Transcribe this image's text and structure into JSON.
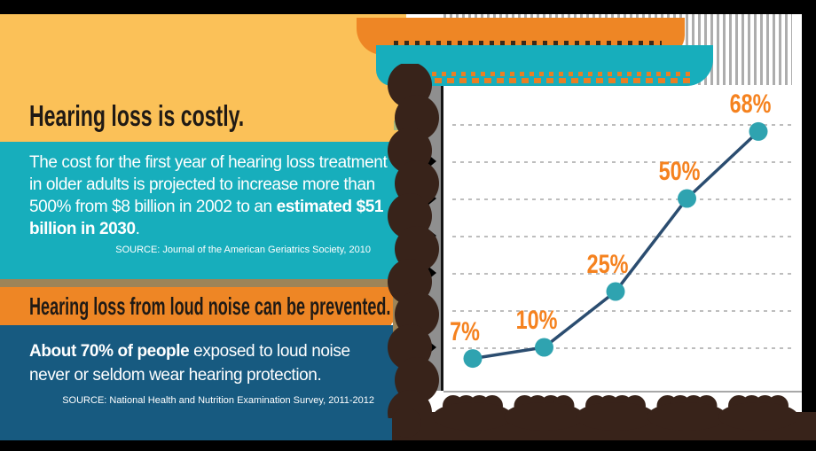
{
  "colors": {
    "yellow": "#FBC158",
    "teal": "#17AEBC",
    "orange": "#EE8625",
    "dark_blue": "#175A80",
    "tan": "#9D8458",
    "brown": "#38231A",
    "frame_black": "#000000",
    "label_orange": "#F5821F",
    "line_navy": "#2B4D70",
    "dot_teal": "#2FA3B0",
    "grid_gray": "#BDBDBD",
    "stripe_gray": "#ADADAD",
    "axis_bar_gray": "#8F8F8F",
    "sage": "#A8BA7F"
  },
  "costly_section": {
    "heading": "Hearing loss is costly.",
    "body_pre": "The cost for the first year of hearing loss treatment in older adults is projected to increase more than 500% from $8 billion in 2002 to an ",
    "body_bold": "estimated $51 billion in 2030",
    "body_end": ".",
    "source": "SOURCE:  Journal of the American Geriatrics Society, 2010"
  },
  "prevention_section": {
    "heading": "Hearing loss from loud noise can be prevented.",
    "body_bold": "About 70% of people",
    "body_rest": " exposed to loud noise never or seldom wear hearing protection.",
    "source": "SOURCE: National Health and Nutrition Examination Survey, 2011-2012"
  },
  "chart_data": {
    "type": "line",
    "x": [
      1,
      2,
      3,
      4,
      5
    ],
    "values": [
      7,
      10,
      25,
      50,
      68
    ],
    "point_labels": [
      "7%",
      "10%",
      "25%",
      "50%",
      "68%"
    ],
    "title": "",
    "xlabel": "",
    "ylabel": "",
    "ylim": [
      0,
      80
    ],
    "gridlines_percent": [
      10,
      20,
      30,
      40,
      50,
      60,
      70
    ],
    "grid": "dashed-horizontal",
    "legend": "none",
    "note": "chart title and x-axis category labels are clipped/illegible at the screenshot edges"
  }
}
